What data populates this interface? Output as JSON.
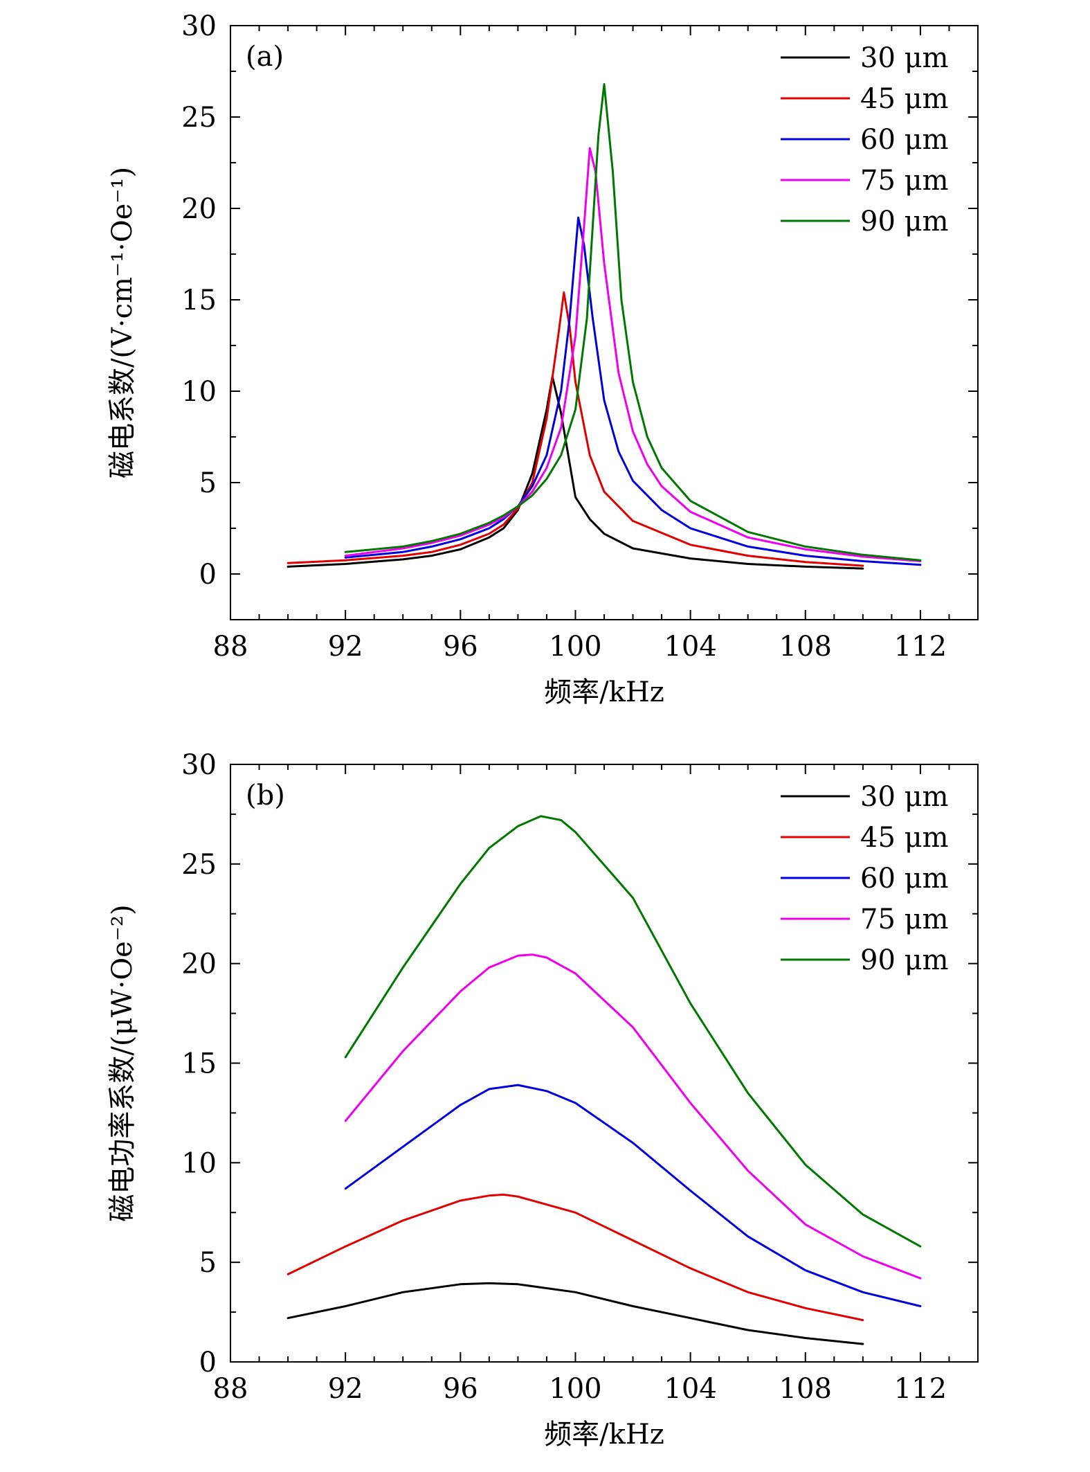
{
  "chart_data": [
    {
      "type": "line",
      "panel_label": "(a)",
      "xlabel": "频率/kHz",
      "ylabel": "磁电系数/(V·cm⁻¹·Oe⁻¹)",
      "xlim": [
        88,
        114
      ],
      "ylim": [
        -2.5,
        30
      ],
      "xticks": [
        88,
        92,
        96,
        100,
        104,
        108,
        112
      ],
      "yticks": [
        0,
        5,
        10,
        15,
        20,
        25,
        30
      ],
      "legend_position": "top-right",
      "series": [
        {
          "name": "30 μm",
          "color": "#000000",
          "x": [
            90,
            92,
            94,
            95,
            96,
            97,
            97.5,
            98,
            98.5,
            99,
            99.2,
            99.5,
            100,
            100.5,
            101,
            102,
            104,
            106,
            108,
            110
          ],
          "y": [
            0.4,
            0.55,
            0.8,
            1.0,
            1.35,
            2.0,
            2.5,
            3.5,
            5.5,
            9.0,
            10.8,
            8.8,
            4.2,
            3.0,
            2.2,
            1.4,
            0.85,
            0.55,
            0.4,
            0.3
          ]
        },
        {
          "name": "45 μm",
          "color": "#e00000",
          "x": [
            90,
            92,
            94,
            95,
            96,
            97,
            97.5,
            98,
            98.5,
            99,
            99.4,
            99.6,
            99.8,
            100,
            100.5,
            101,
            102,
            104,
            106,
            108,
            110
          ],
          "y": [
            0.6,
            0.75,
            1.0,
            1.2,
            1.6,
            2.2,
            2.7,
            3.6,
            5.0,
            8.5,
            13.0,
            15.4,
            13.5,
            10.5,
            6.5,
            4.5,
            2.9,
            1.6,
            1.0,
            0.65,
            0.45
          ]
        },
        {
          "name": "60 μm",
          "color": "#0000dd",
          "x": [
            92,
            94,
            95,
            96,
            97,
            97.5,
            98,
            98.5,
            99,
            99.5,
            99.8,
            100.1,
            100.3,
            100.6,
            101,
            101.5,
            102,
            103,
            104,
            106,
            108,
            110,
            112
          ],
          "y": [
            0.9,
            1.2,
            1.5,
            1.9,
            2.5,
            3.0,
            3.7,
            4.8,
            6.5,
            10.0,
            14.0,
            19.5,
            18.0,
            14.0,
            9.5,
            6.7,
            5.1,
            3.5,
            2.5,
            1.5,
            1.0,
            0.7,
            0.5
          ]
        },
        {
          "name": "75 μm",
          "color": "#ee00ee",
          "x": [
            92,
            94,
            95,
            96,
            97,
            97.5,
            98,
            98.5,
            99,
            99.5,
            100,
            100.3,
            100.5,
            100.7,
            101,
            101.5,
            102,
            102.5,
            103,
            104,
            106,
            108,
            110,
            112
          ],
          "y": [
            1.0,
            1.4,
            1.7,
            2.1,
            2.7,
            3.1,
            3.7,
            4.5,
            5.8,
            8.0,
            13.0,
            19.0,
            23.3,
            22.0,
            17.0,
            11.0,
            7.8,
            6.0,
            4.8,
            3.4,
            2.0,
            1.35,
            0.95,
            0.7
          ]
        },
        {
          "name": "90 μm",
          "color": "#007700",
          "x": [
            92,
            94,
            95,
            96,
            97,
            97.5,
            98,
            98.5,
            99,
            99.5,
            100,
            100.4,
            100.8,
            101,
            101.3,
            101.6,
            102,
            102.5,
            103,
            104,
            106,
            108,
            110,
            112
          ],
          "y": [
            1.2,
            1.5,
            1.8,
            2.2,
            2.8,
            3.2,
            3.7,
            4.3,
            5.2,
            6.5,
            9.0,
            14.0,
            24.0,
            26.8,
            22.0,
            15.0,
            10.5,
            7.5,
            5.8,
            4.0,
            2.3,
            1.5,
            1.05,
            0.75
          ]
        }
      ]
    },
    {
      "type": "line",
      "panel_label": "(b)",
      "xlabel": "频率/kHz",
      "ylabel": "磁电功率系数/(μW·Oe⁻²)",
      "xlim": [
        88,
        114
      ],
      "ylim": [
        0,
        30
      ],
      "xticks": [
        88,
        92,
        96,
        100,
        104,
        108,
        112
      ],
      "yticks": [
        0,
        5,
        10,
        15,
        20,
        25,
        30
      ],
      "legend_position": "top-right",
      "series": [
        {
          "name": "30 μm",
          "color": "#000000",
          "x": [
            90,
            92,
            94,
            96,
            97,
            98,
            100,
            102,
            104,
            106,
            108,
            110
          ],
          "y": [
            2.2,
            2.8,
            3.5,
            3.9,
            3.95,
            3.9,
            3.5,
            2.8,
            2.2,
            1.6,
            1.2,
            0.9
          ]
        },
        {
          "name": "45 μm",
          "color": "#e00000",
          "x": [
            90,
            92,
            94,
            96,
            97,
            97.5,
            98,
            100,
            102,
            104,
            106,
            108,
            110
          ],
          "y": [
            4.4,
            5.8,
            7.1,
            8.1,
            8.35,
            8.4,
            8.3,
            7.5,
            6.1,
            4.7,
            3.5,
            2.7,
            2.1
          ]
        },
        {
          "name": "60 μm",
          "color": "#0000dd",
          "x": [
            92,
            94,
            96,
            97,
            98,
            99,
            100,
            102,
            104,
            106,
            108,
            110,
            112
          ],
          "y": [
            8.7,
            10.8,
            12.9,
            13.7,
            13.9,
            13.6,
            13.0,
            11.0,
            8.6,
            6.3,
            4.6,
            3.5,
            2.8
          ]
        },
        {
          "name": "75 μm",
          "color": "#ee00ee",
          "x": [
            92,
            94,
            96,
            97,
            98,
            98.5,
            99,
            100,
            102,
            104,
            106,
            108,
            110,
            112
          ],
          "y": [
            12.1,
            15.6,
            18.6,
            19.8,
            20.4,
            20.45,
            20.3,
            19.5,
            16.8,
            13.0,
            9.6,
            6.9,
            5.3,
            4.2
          ]
        },
        {
          "name": "90 μm",
          "color": "#007700",
          "x": [
            92,
            94,
            96,
            97,
            98,
            98.8,
            99.5,
            100,
            102,
            104,
            106,
            108,
            110,
            112
          ],
          "y": [
            15.3,
            19.8,
            24.0,
            25.8,
            26.9,
            27.4,
            27.2,
            26.6,
            23.3,
            18.0,
            13.5,
            9.9,
            7.4,
            5.8
          ]
        }
      ]
    }
  ]
}
